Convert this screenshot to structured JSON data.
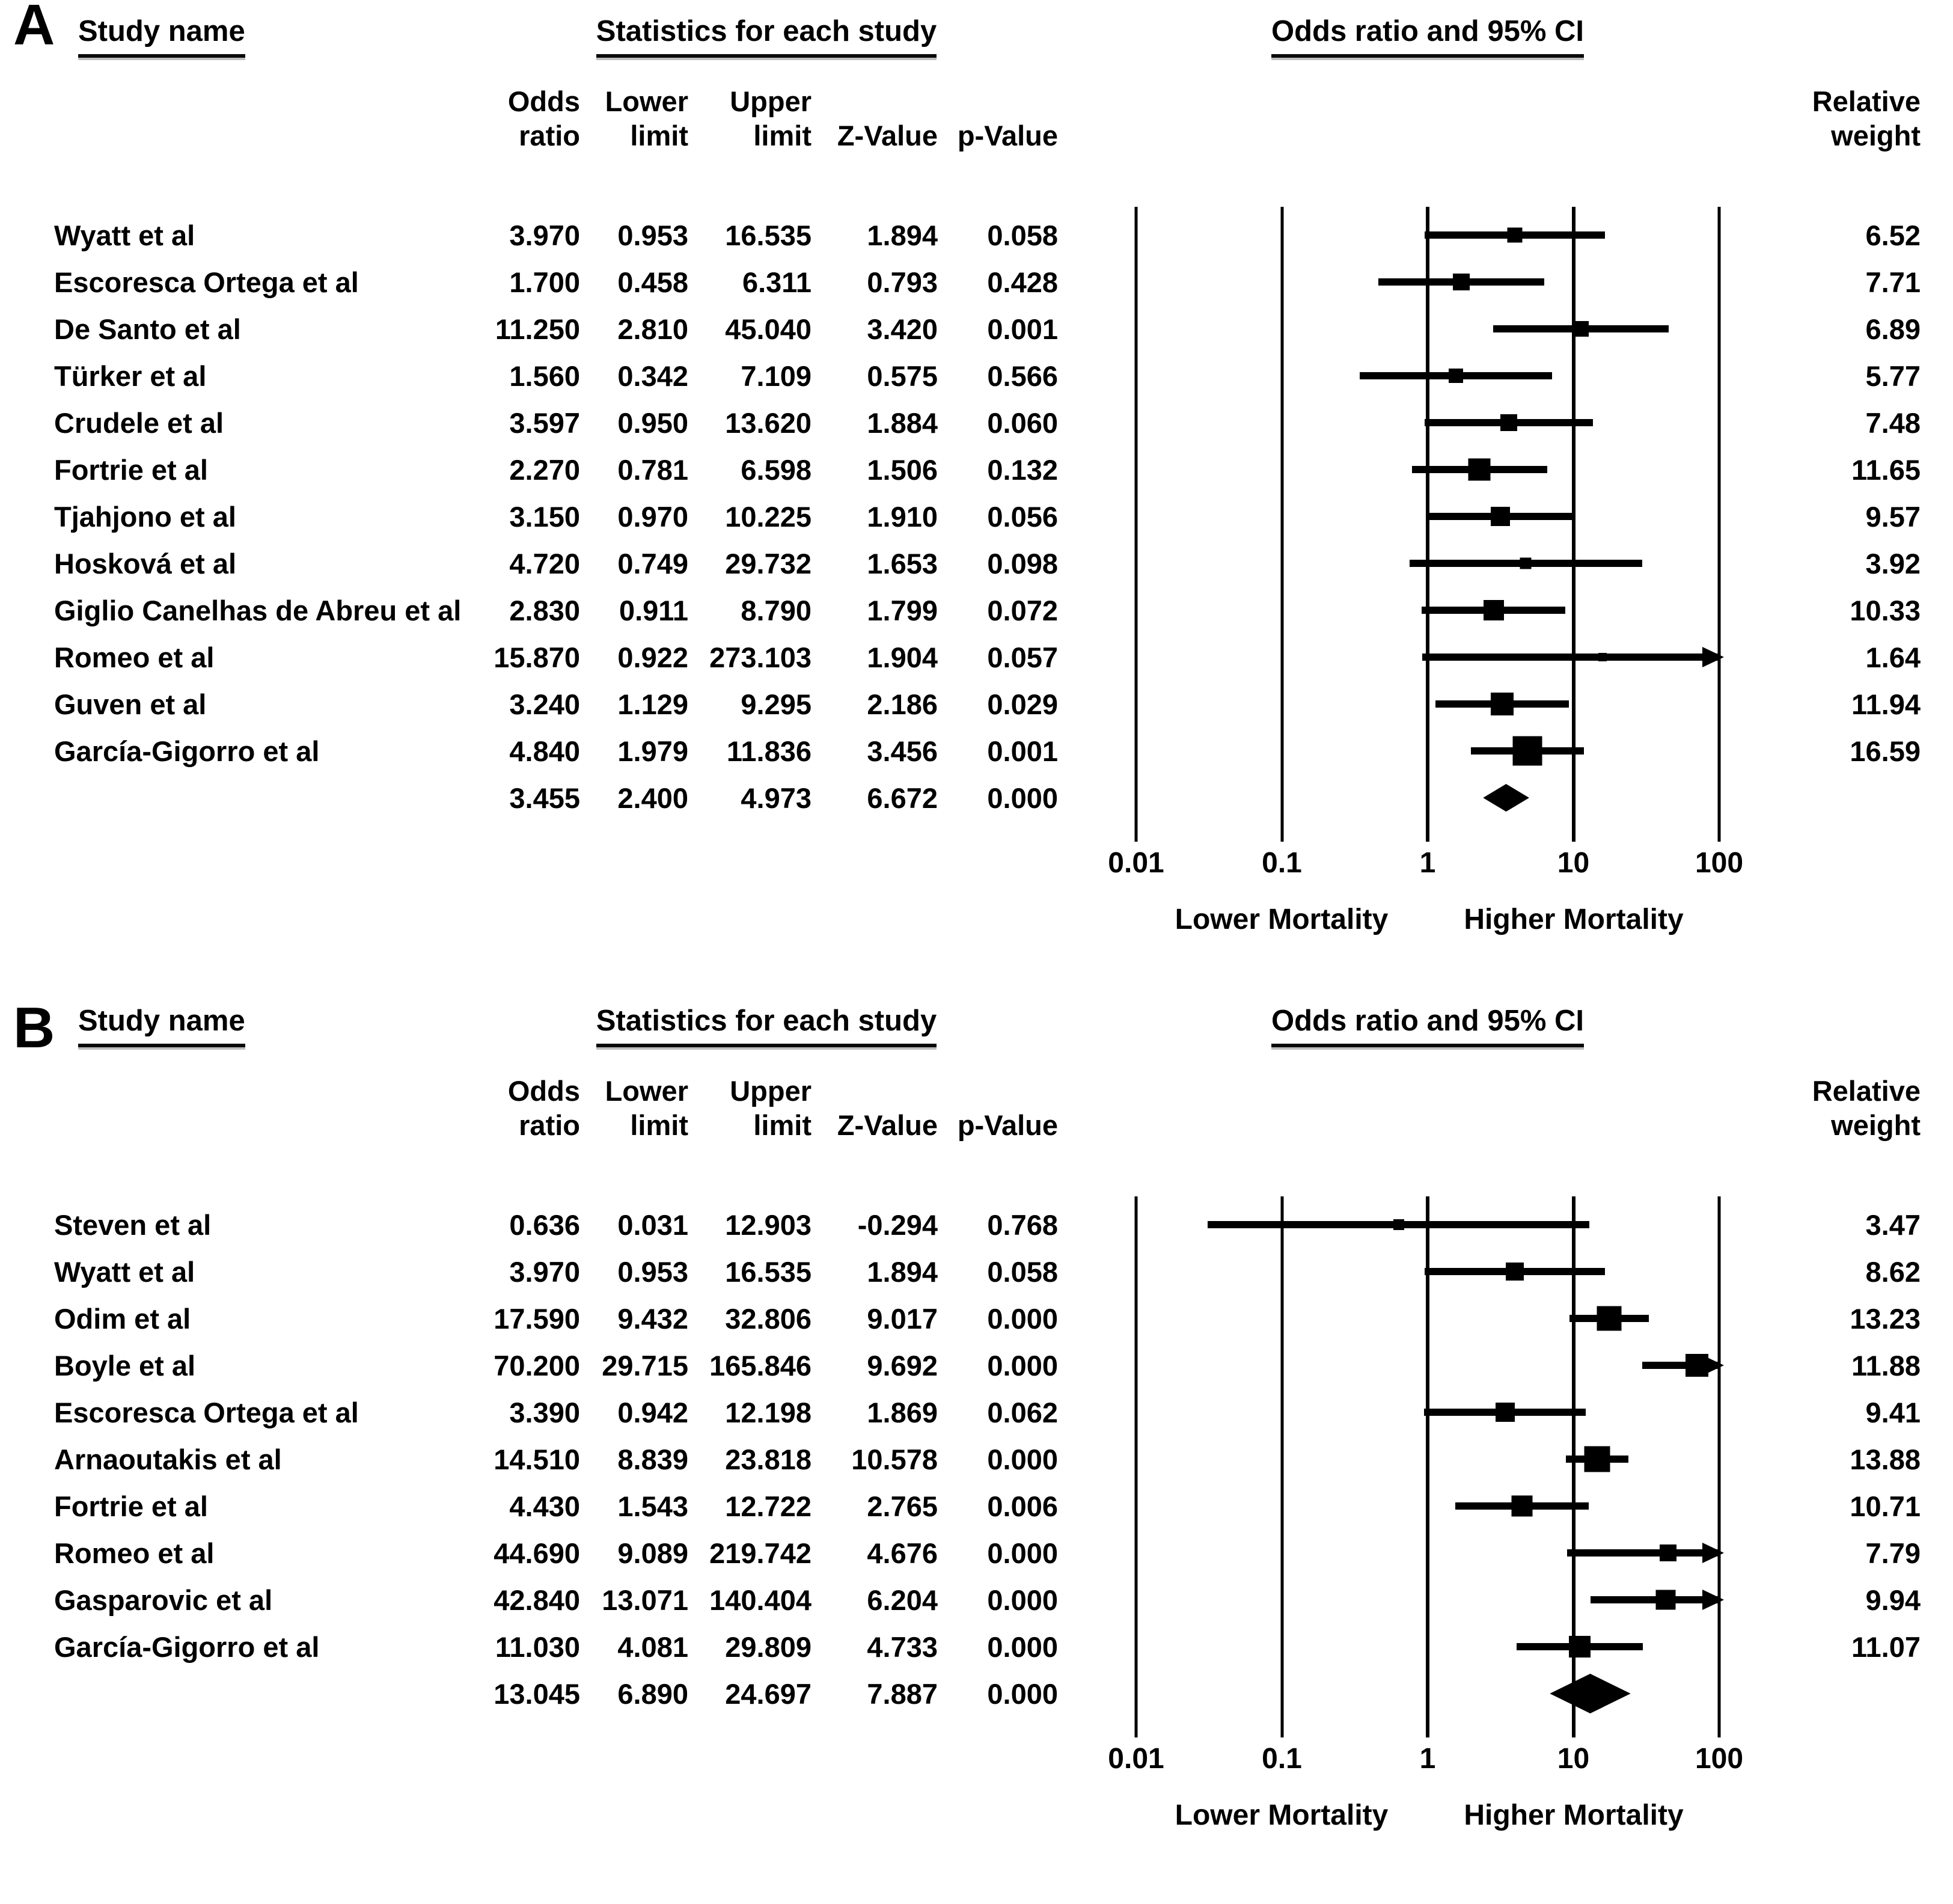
{
  "figure": {
    "panel_a_label": "A",
    "panel_b_label": "B"
  },
  "header": {
    "study_name": "Study name",
    "stats_title": "Statistics for each study",
    "plot_title": "Odds ratio and 95% CI",
    "odds_line1": "Odds",
    "odds_line2": "ratio",
    "lower_line1": "Lower",
    "lower_line2": "limit",
    "upper_line1": "Upper",
    "upper_line2": "limit",
    "z_label": "Z-Value",
    "p_label": "p-Value",
    "relative_weight_line1": "Relative",
    "relative_weight_line2": "weight"
  },
  "axis": {
    "min": 0.01,
    "max": 100,
    "scale": "log",
    "tick_values": [
      0.01,
      0.1,
      1,
      10,
      100
    ],
    "tick_labels": [
      "0.01",
      "0.1",
      "1",
      "10",
      "100"
    ],
    "left_label": "Lower Mortality",
    "right_label": "Higher Mortality"
  },
  "chart_data": [
    {
      "type": "forest",
      "panel": "A",
      "title": "Odds ratio and 95% CI",
      "x_scale": "log",
      "x_range": [
        0.01,
        100
      ],
      "x_ticks": [
        0.01,
        0.1,
        1,
        10,
        100
      ],
      "direction_labels": {
        "left": "Lower Mortality",
        "right": "Higher Mortality"
      },
      "studies": [
        {
          "name": "Wyatt et al",
          "odds_ratio": 3.97,
          "lower_limit": 0.953,
          "upper_limit": 16.535,
          "z_value": 1.894,
          "p_value": 0.058,
          "relative_weight": 6.52
        },
        {
          "name": "Escoresca Ortega et al",
          "odds_ratio": 1.7,
          "lower_limit": 0.458,
          "upper_limit": 6.311,
          "z_value": 0.793,
          "p_value": 0.428,
          "relative_weight": 7.71
        },
        {
          "name": "De Santo et al",
          "odds_ratio": 11.25,
          "lower_limit": 2.81,
          "upper_limit": 45.04,
          "z_value": 3.42,
          "p_value": 0.001,
          "relative_weight": 6.89
        },
        {
          "name": "Türker et al",
          "odds_ratio": 1.56,
          "lower_limit": 0.342,
          "upper_limit": 7.109,
          "z_value": 0.575,
          "p_value": 0.566,
          "relative_weight": 5.77
        },
        {
          "name": "Crudele et al",
          "odds_ratio": 3.597,
          "lower_limit": 0.95,
          "upper_limit": 13.62,
          "z_value": 1.884,
          "p_value": 0.06,
          "relative_weight": 7.48
        },
        {
          "name": "Fortrie et al",
          "odds_ratio": 2.27,
          "lower_limit": 0.781,
          "upper_limit": 6.598,
          "z_value": 1.506,
          "p_value": 0.132,
          "relative_weight": 11.65
        },
        {
          "name": "Tjahjono et al",
          "odds_ratio": 3.15,
          "lower_limit": 0.97,
          "upper_limit": 10.225,
          "z_value": 1.91,
          "p_value": 0.056,
          "relative_weight": 9.57
        },
        {
          "name": "Hosková et al",
          "odds_ratio": 4.72,
          "lower_limit": 0.749,
          "upper_limit": 29.732,
          "z_value": 1.653,
          "p_value": 0.098,
          "relative_weight": 3.92
        },
        {
          "name": "Giglio Canelhas de Abreu et al",
          "odds_ratio": 2.83,
          "lower_limit": 0.911,
          "upper_limit": 8.79,
          "z_value": 1.799,
          "p_value": 0.072,
          "relative_weight": 10.33
        },
        {
          "name": "Romeo et al",
          "odds_ratio": 15.87,
          "lower_limit": 0.922,
          "upper_limit": 273.103,
          "z_value": 1.904,
          "p_value": 0.057,
          "relative_weight": 1.64
        },
        {
          "name": "Guven et al",
          "odds_ratio": 3.24,
          "lower_limit": 1.129,
          "upper_limit": 9.295,
          "z_value": 2.186,
          "p_value": 0.029,
          "relative_weight": 11.94
        },
        {
          "name": "García-Gigorro et al",
          "odds_ratio": 4.84,
          "lower_limit": 1.979,
          "upper_limit": 11.836,
          "z_value": 3.456,
          "p_value": 0.001,
          "relative_weight": 16.59
        }
      ],
      "summary": {
        "odds_ratio": 3.455,
        "lower_limit": 2.4,
        "upper_limit": 4.973,
        "z_value": 6.672,
        "p_value": 0.0
      }
    },
    {
      "type": "forest",
      "panel": "B",
      "title": "Odds ratio and 95% CI",
      "x_scale": "log",
      "x_range": [
        0.01,
        100
      ],
      "x_ticks": [
        0.01,
        0.1,
        1,
        10,
        100
      ],
      "direction_labels": {
        "left": "Lower Mortality",
        "right": "Higher Mortality"
      },
      "studies": [
        {
          "name": "Steven et al",
          "odds_ratio": 0.636,
          "lower_limit": 0.031,
          "upper_limit": 12.903,
          "z_value": -0.294,
          "p_value": 0.768,
          "relative_weight": 3.47
        },
        {
          "name": "Wyatt et al",
          "odds_ratio": 3.97,
          "lower_limit": 0.953,
          "upper_limit": 16.535,
          "z_value": 1.894,
          "p_value": 0.058,
          "relative_weight": 8.62
        },
        {
          "name": "Odim et al",
          "odds_ratio": 17.59,
          "lower_limit": 9.432,
          "upper_limit": 32.806,
          "z_value": 9.017,
          "p_value": 0.0,
          "relative_weight": 13.23
        },
        {
          "name": "Boyle et al",
          "odds_ratio": 70.2,
          "lower_limit": 29.715,
          "upper_limit": 165.846,
          "z_value": 9.692,
          "p_value": 0.0,
          "relative_weight": 11.88
        },
        {
          "name": "Escoresca Ortega et al",
          "odds_ratio": 3.39,
          "lower_limit": 0.942,
          "upper_limit": 12.198,
          "z_value": 1.869,
          "p_value": 0.062,
          "relative_weight": 9.41
        },
        {
          "name": "Arnaoutakis et al",
          "odds_ratio": 14.51,
          "lower_limit": 8.839,
          "upper_limit": 23.818,
          "z_value": 10.578,
          "p_value": 0.0,
          "relative_weight": 13.88
        },
        {
          "name": "Fortrie et al",
          "odds_ratio": 4.43,
          "lower_limit": 1.543,
          "upper_limit": 12.722,
          "z_value": 2.765,
          "p_value": 0.006,
          "relative_weight": 10.71
        },
        {
          "name": "Romeo et al",
          "odds_ratio": 44.69,
          "lower_limit": 9.089,
          "upper_limit": 219.742,
          "z_value": 4.676,
          "p_value": 0.0,
          "relative_weight": 7.79
        },
        {
          "name": "Gasparovic et al",
          "odds_ratio": 42.84,
          "lower_limit": 13.071,
          "upper_limit": 140.404,
          "z_value": 6.204,
          "p_value": 0.0,
          "relative_weight": 9.94
        },
        {
          "name": "García-Gigorro et al",
          "odds_ratio": 11.03,
          "lower_limit": 4.081,
          "upper_limit": 29.809,
          "z_value": 4.733,
          "p_value": 0.0,
          "relative_weight": 11.07
        }
      ],
      "summary": {
        "odds_ratio": 13.045,
        "lower_limit": 6.89,
        "upper_limit": 24.697,
        "z_value": 7.887,
        "p_value": 0.0
      }
    }
  ]
}
